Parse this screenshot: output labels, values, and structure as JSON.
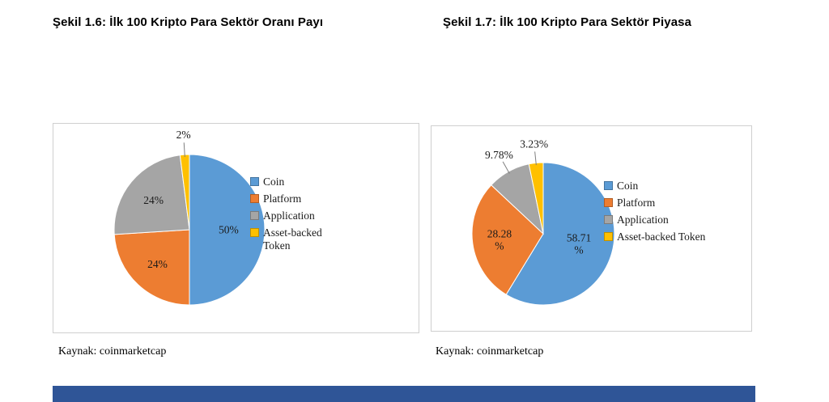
{
  "colors": {
    "accent_bar": "#2F5597"
  },
  "chart_data": [
    {
      "type": "pie",
      "title": "Şekil 1.6: İlk 100 Kripto Para Sektör Oranı Payı",
      "categories": [
        "Coin",
        "Platform",
        "Application",
        "Asset-backed Token"
      ],
      "values": [
        50,
        24,
        24,
        2
      ],
      "value_labels": [
        "50%",
        "24%",
        "24%",
        "2%"
      ],
      "colors": [
        "#5B9BD5",
        "#ED7D31",
        "#A5A5A5",
        "#FFC000"
      ],
      "legend_position": "right",
      "source": "Kaynak: coinmarketcap"
    },
    {
      "type": "pie",
      "title": "Şekil 1.7: İlk 100 Kripto Para Sektör Piyasa",
      "categories": [
        "Coin",
        "Platform",
        "Application",
        "Asset-backed Token"
      ],
      "values": [
        58.71,
        28.28,
        9.78,
        3.23
      ],
      "value_labels": [
        "58.71\n%",
        "28.28\n%",
        "9.78%",
        "3.23%"
      ],
      "colors": [
        "#5B9BD5",
        "#ED7D31",
        "#A5A5A5",
        "#FFC000"
      ],
      "legend_position": "right",
      "source": "Kaynak: coinmarketcap"
    }
  ]
}
